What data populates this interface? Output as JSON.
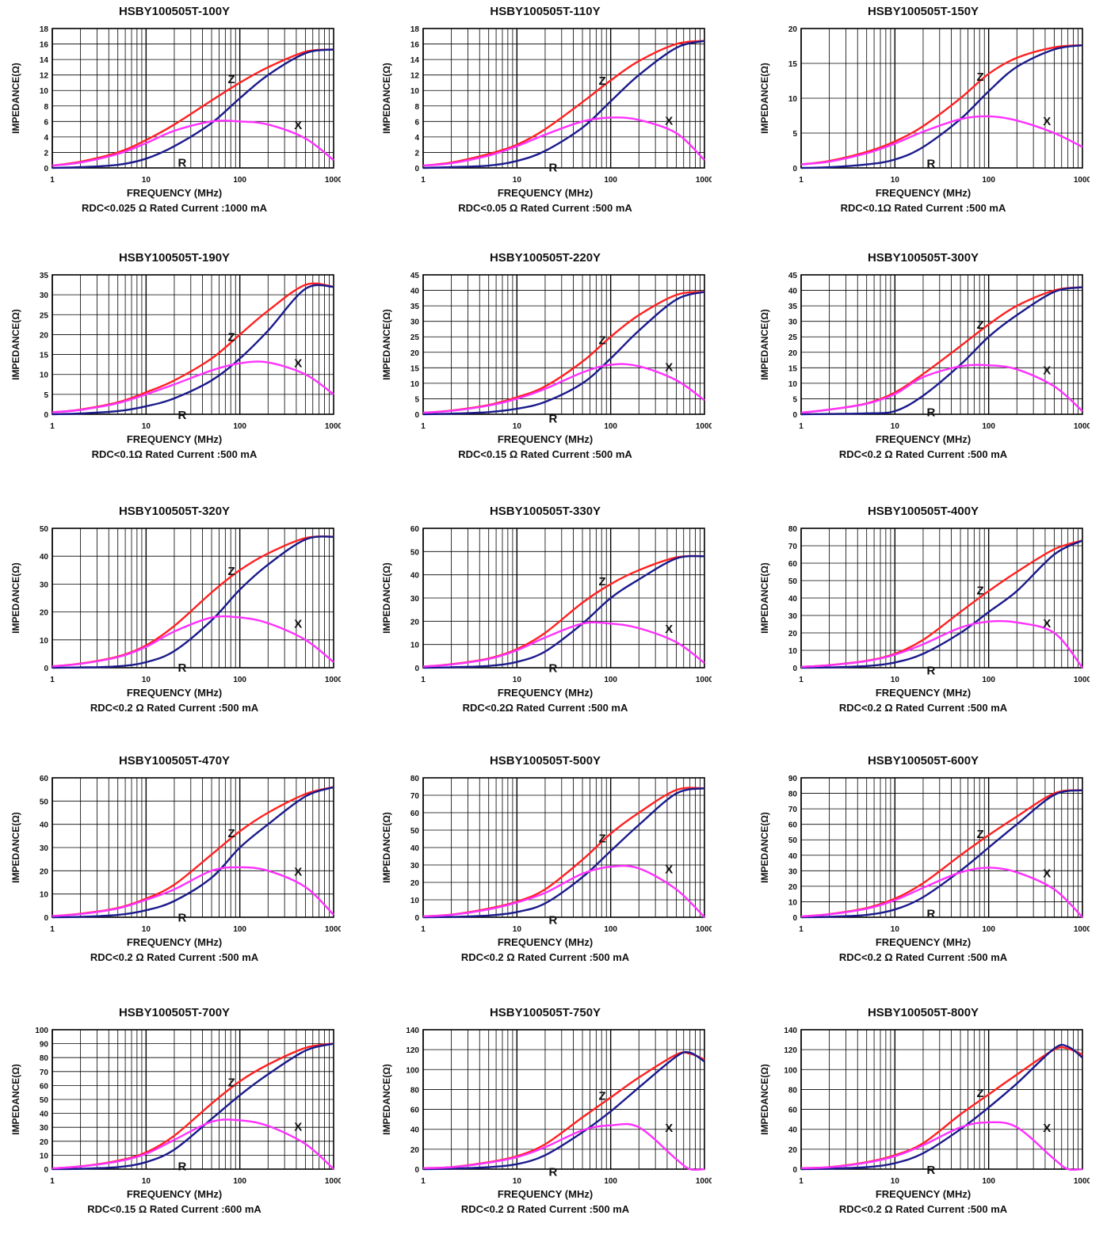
{
  "common": {
    "xlabel": "FREQUENCY (MHz)",
    "ylabel": "IMPEDANCE(Ω)",
    "x_ticks": [
      "1",
      "10",
      "100",
      "1000"
    ],
    "curve_labels": [
      "Z",
      "R",
      "X"
    ],
    "colors": {
      "Z": "#ff2020",
      "R": "#1a1a8c",
      "X": "#ff30ff"
    }
  },
  "chart_data": [
    {
      "type": "line",
      "title": "HSBY100505T-100Y",
      "note": "RDC<0.025 Ω Rated Current :1000 mA",
      "ylim": [
        0,
        18
      ],
      "ystep": 2,
      "xlim": [
        1,
        1000
      ],
      "x_scale": "log",
      "x": [
        1,
        2,
        5,
        10,
        20,
        50,
        100,
        200,
        500,
        1000
      ],
      "series": [
        {
          "name": "Z",
          "values": [
            0.3,
            0.8,
            2,
            3.6,
            5.6,
            8.7,
            11,
            13,
            15,
            15.3
          ]
        },
        {
          "name": "R",
          "values": [
            0,
            0.1,
            0.4,
            1.2,
            2.8,
            5.8,
            9,
            12,
            14.8,
            15.3
          ]
        },
        {
          "name": "X",
          "values": [
            0.3,
            0.7,
            1.8,
            3.2,
            4.8,
            6,
            6,
            5.6,
            3.8,
            1
          ]
        }
      ]
    },
    {
      "type": "line",
      "title": "HSBY100505T-110Y",
      "note": "RDC<0.05 Ω Rated Current :500 mA",
      "ylim": [
        0,
        18
      ],
      "ystep": 2,
      "xlim": [
        1,
        1000
      ],
      "x_scale": "log",
      "x": [
        1,
        2,
        5,
        10,
        20,
        50,
        100,
        200,
        500,
        1000
      ],
      "series": [
        {
          "name": "Z",
          "values": [
            0.3,
            0.7,
            1.8,
            3,
            5,
            8.5,
            11.3,
            13.8,
            16,
            16.4
          ]
        },
        {
          "name": "R",
          "values": [
            0,
            0.1,
            0.3,
            0.9,
            2.2,
            5.2,
            8.6,
            12,
            15.5,
            16.4
          ]
        },
        {
          "name": "X",
          "values": [
            0.3,
            0.6,
            1.6,
            2.8,
            4.3,
            6,
            6.5,
            6.2,
            4.5,
            1
          ]
        }
      ]
    },
    {
      "type": "line",
      "title": "HSBY100505T-150Y",
      "note": "RDC<0.1Ω Rated Current :500 mA",
      "ylim": [
        0,
        20
      ],
      "ystep": 5,
      "xlim": [
        1,
        1000
      ],
      "x_scale": "log",
      "x": [
        1,
        2,
        5,
        10,
        20,
        50,
        100,
        200,
        500,
        1000
      ],
      "series": [
        {
          "name": "Z",
          "values": [
            0.5,
            1,
            2.3,
            3.8,
            6,
            10,
            13.5,
            15.8,
            17.3,
            17.6
          ]
        },
        {
          "name": "R",
          "values": [
            0,
            0.1,
            0.5,
            1.2,
            3,
            7,
            11,
            14.5,
            17,
            17.6
          ]
        },
        {
          "name": "X",
          "values": [
            0.5,
            0.9,
            2.1,
            3.5,
            5.2,
            7,
            7.4,
            6.8,
            5,
            3
          ]
        }
      ]
    },
    {
      "type": "line",
      "title": "HSBY100505T-190Y",
      "note": "RDC<0.1Ω Rated Current :500 mA",
      "ylim": [
        0,
        35
      ],
      "ystep": 5,
      "xlim": [
        1,
        1000
      ],
      "x_scale": "log",
      "x": [
        1,
        2,
        5,
        10,
        20,
        50,
        100,
        200,
        500,
        1000
      ],
      "series": [
        {
          "name": "Z",
          "values": [
            0.5,
            1.2,
            3,
            5.5,
            8.5,
            14,
            20,
            26,
            32.5,
            32
          ]
        },
        {
          "name": "R",
          "values": [
            0,
            0.2,
            0.8,
            2,
            4,
            8.5,
            14,
            21,
            31.5,
            32
          ]
        },
        {
          "name": "X",
          "values": [
            0.5,
            1.1,
            2.8,
            5,
            7.5,
            11,
            12.8,
            13,
            10,
            5
          ]
        }
      ]
    },
    {
      "type": "line",
      "title": "HSBY100505T-220Y",
      "note": "RDC<0.15 Ω Rated Current :500 mA",
      "ylim": [
        0,
        45
      ],
      "ystep": 5,
      "xlim": [
        1,
        1000
      ],
      "x_scale": "log",
      "x": [
        1,
        2,
        5,
        10,
        20,
        50,
        100,
        200,
        500,
        1000
      ],
      "series": [
        {
          "name": "Z",
          "values": [
            0.5,
            1.2,
            3,
            5.5,
            9,
            17,
            25,
            32,
            38.5,
            39.5
          ]
        },
        {
          "name": "R",
          "values": [
            0,
            0.2,
            0.7,
            1.8,
            4,
            10,
            18,
            27,
            37,
            39.5
          ]
        },
        {
          "name": "X",
          "values": [
            0.5,
            1.1,
            2.8,
            5,
            8.2,
            13.5,
            16,
            15.5,
            11,
            4.5
          ]
        }
      ]
    },
    {
      "type": "line",
      "title": "HSBY100505T-300Y",
      "note": "RDC<0.2 Ω Rated Current :500 mA",
      "ylim": [
        0,
        45
      ],
      "ystep": 5,
      "xlim": [
        1,
        1000
      ],
      "x_scale": "log",
      "x": [
        1,
        2,
        5,
        10,
        20,
        50,
        100,
        200,
        500,
        1000
      ],
      "series": [
        {
          "name": "Z",
          "values": [
            0.5,
            1.5,
            3.5,
            7,
            13,
            22,
            29,
            35,
            40,
            41
          ]
        },
        {
          "name": "R",
          "values": [
            0,
            0.1,
            0.3,
            1,
            6,
            16,
            25,
            32,
            39.5,
            41
          ]
        },
        {
          "name": "X",
          "values": [
            0.5,
            1.5,
            3.4,
            6.5,
            12,
            15.5,
            15.8,
            14.5,
            9,
            1
          ]
        }
      ]
    },
    {
      "type": "line",
      "title": "HSBY100505T-320Y",
      "note": "RDC<0.2 Ω Rated Current :500 mA",
      "ylim": [
        0,
        50
      ],
      "ystep": 10,
      "xlim": [
        1,
        1000
      ],
      "x_scale": "log",
      "x": [
        1,
        2,
        5,
        10,
        20,
        50,
        100,
        200,
        500,
        1000
      ],
      "series": [
        {
          "name": "Z",
          "values": [
            0.5,
            1.5,
            4,
            8,
            15,
            27,
            35,
            41,
            46.5,
            47
          ]
        },
        {
          "name": "R",
          "values": [
            0,
            0.1,
            0.5,
            2,
            6,
            17,
            28,
            37,
            46,
            47
          ]
        },
        {
          "name": "X",
          "values": [
            0.5,
            1.4,
            3.8,
            7.5,
            13,
            18,
            18,
            16,
            10,
            2
          ]
        }
      ]
    },
    {
      "type": "line",
      "title": "HSBY100505T-330Y",
      "note": "RDC<0.2Ω Rated Current :500 mA",
      "ylim": [
        0,
        60
      ],
      "ystep": 10,
      "xlim": [
        1,
        1000
      ],
      "x_scale": "log",
      "x": [
        1,
        2,
        5,
        10,
        20,
        50,
        100,
        200,
        500,
        1000
      ],
      "series": [
        {
          "name": "Z",
          "values": [
            0.5,
            1.5,
            4,
            8,
            15,
            28,
            36,
            42,
            47.5,
            48
          ]
        },
        {
          "name": "R",
          "values": [
            0,
            0.2,
            0.8,
            2.5,
            7,
            19,
            30,
            38,
            47,
            48
          ]
        },
        {
          "name": "X",
          "values": [
            0.5,
            1.4,
            3.8,
            7.5,
            13,
            19,
            19,
            17,
            11,
            2
          ]
        }
      ]
    },
    {
      "type": "line",
      "title": "HSBY100505T-400Y",
      "note": "RDC<0.2 Ω Rated Current :500 mA",
      "ylim": [
        0,
        80
      ],
      "ystep": 10,
      "xlim": [
        1,
        1000
      ],
      "x_scale": "log",
      "x": [
        1,
        2,
        5,
        10,
        20,
        50,
        100,
        200,
        500,
        1000
      ],
      "series": [
        {
          "name": "Z",
          "values": [
            0.5,
            1.5,
            4,
            8,
            16,
            32,
            44,
            55,
            68,
            73
          ]
        },
        {
          "name": "R",
          "values": [
            0,
            0.2,
            1,
            3,
            8,
            20,
            32,
            44,
            65,
            73
          ]
        },
        {
          "name": "X",
          "values": [
            0.5,
            1.4,
            3.8,
            7.5,
            13.5,
            23,
            26.5,
            26,
            20,
            0
          ]
        }
      ]
    },
    {
      "type": "line",
      "title": "HSBY100505T-470Y",
      "note": "RDC<0.2 Ω Rated Current :500 mA",
      "ylim": [
        0,
        60
      ],
      "ystep": 10,
      "xlim": [
        1,
        1000
      ],
      "x_scale": "log",
      "x": [
        1,
        2,
        5,
        10,
        20,
        50,
        100,
        200,
        500,
        1000
      ],
      "series": [
        {
          "name": "Z",
          "values": [
            0.5,
            1.5,
            4,
            8,
            14,
            27,
            37,
            45,
            53,
            56
          ]
        },
        {
          "name": "R",
          "values": [
            0,
            0.2,
            1,
            3,
            7,
            17,
            30,
            40,
            52,
            56
          ]
        },
        {
          "name": "X",
          "values": [
            0.5,
            1.4,
            3.8,
            7.5,
            12,
            20,
            21.5,
            20,
            13,
            1
          ]
        }
      ]
    },
    {
      "type": "line",
      "title": "HSBY100505T-500Y",
      "note": "RDC<0.2 Ω Rated Current :500 mA",
      "ylim": [
        0,
        80
      ],
      "ystep": 10,
      "xlim": [
        1,
        1000
      ],
      "x_scale": "log",
      "x": [
        1,
        2,
        5,
        10,
        20,
        50,
        100,
        200,
        500,
        1000
      ],
      "series": [
        {
          "name": "Z",
          "values": [
            0.5,
            1.5,
            5,
            9,
            16,
            33,
            48,
            60,
            73,
            74
          ]
        },
        {
          "name": "R",
          "values": [
            0,
            0.2,
            1,
            3,
            8,
            23,
            38,
            53,
            71,
            74
          ]
        },
        {
          "name": "X",
          "values": [
            0.5,
            1.4,
            4.5,
            8.5,
            14,
            25,
            29,
            28,
            16,
            0
          ]
        }
      ]
    },
    {
      "type": "line",
      "title": "HSBY100505T-600Y",
      "note": "RDC<0.2 Ω Rated Current :500 mA",
      "ylim": [
        0,
        90
      ],
      "ystep": 10,
      "xlim": [
        1,
        1000
      ],
      "x_scale": "log",
      "x": [
        1,
        2,
        5,
        10,
        20,
        50,
        100,
        200,
        500,
        1000
      ],
      "series": [
        {
          "name": "Z",
          "values": [
            0.5,
            2,
            6,
            12,
            22,
            40,
            53,
            65,
            80,
            82
          ]
        },
        {
          "name": "R",
          "values": [
            0,
            0.3,
            1.5,
            5,
            13,
            30,
            45,
            60,
            79,
            82
          ]
        },
        {
          "name": "X",
          "values": [
            0.5,
            1.9,
            5.5,
            11,
            19,
            29,
            32,
            29,
            18,
            0
          ]
        }
      ]
    },
    {
      "type": "line",
      "title": "HSBY100505T-700Y",
      "note": "RDC<0.15 Ω Rated Current :600 mA",
      "ylim": [
        0,
        100
      ],
      "ystep": 10,
      "xlim": [
        1,
        1000
      ],
      "x_scale": "log",
      "x": [
        1,
        2,
        5,
        10,
        20,
        50,
        100,
        200,
        500,
        1000
      ],
      "series": [
        {
          "name": "Z",
          "values": [
            0.5,
            2,
            6,
            12,
            24,
            47,
            63,
            75,
            87,
            90
          ]
        },
        {
          "name": "R",
          "values": [
            0,
            0.3,
            1.5,
            5,
            14,
            36,
            53,
            68,
            85,
            90
          ]
        },
        {
          "name": "X",
          "values": [
            0.5,
            1.9,
            5.5,
            11,
            21,
            34,
            35,
            31,
            18,
            0
          ]
        }
      ]
    },
    {
      "type": "line",
      "title": "HSBY100505T-750Y",
      "note": "RDC<0.2 Ω Rated Current :500 mA",
      "ylim": [
        0,
        140
      ],
      "ystep": 20,
      "xlim": [
        1,
        1000
      ],
      "x_scale": "log",
      "x": [
        1,
        2,
        5,
        10,
        20,
        50,
        100,
        200,
        500,
        700,
        1000
      ],
      "series": [
        {
          "name": "Z",
          "values": [
            1,
            2,
            7,
            13,
            25,
            52,
            72,
            92,
            115,
            116,
            110
          ]
        },
        {
          "name": "R",
          "values": [
            0,
            0.5,
            2,
            5,
            14,
            37,
            58,
            82,
            113,
            117,
            108
          ]
        },
        {
          "name": "X",
          "values": [
            1,
            1.9,
            6.5,
            12,
            22,
            39,
            44,
            42,
            10,
            0,
            0
          ]
        }
      ]
    },
    {
      "type": "line",
      "title": "HSBY100505T-800Y",
      "note": "RDC<0.2 Ω Rated Current :500 mA",
      "ylim": [
        0,
        140
      ],
      "ystep": 20,
      "xlim": [
        1,
        1000
      ],
      "x_scale": "log",
      "x": [
        1,
        2,
        5,
        10,
        20,
        50,
        100,
        200,
        500,
        700,
        1000
      ],
      "series": [
        {
          "name": "Z",
          "values": [
            1,
            2,
            7,
            14,
            26,
            55,
            75,
            95,
            120,
            121,
            115
          ]
        },
        {
          "name": "R",
          "values": [
            0,
            0.5,
            2,
            6,
            16,
            40,
            62,
            86,
            121,
            123,
            112
          ]
        },
        {
          "name": "X",
          "values": [
            1,
            1.9,
            6.5,
            13,
            24,
            42,
            47,
            42,
            10,
            0,
            0
          ]
        }
      ]
    }
  ]
}
